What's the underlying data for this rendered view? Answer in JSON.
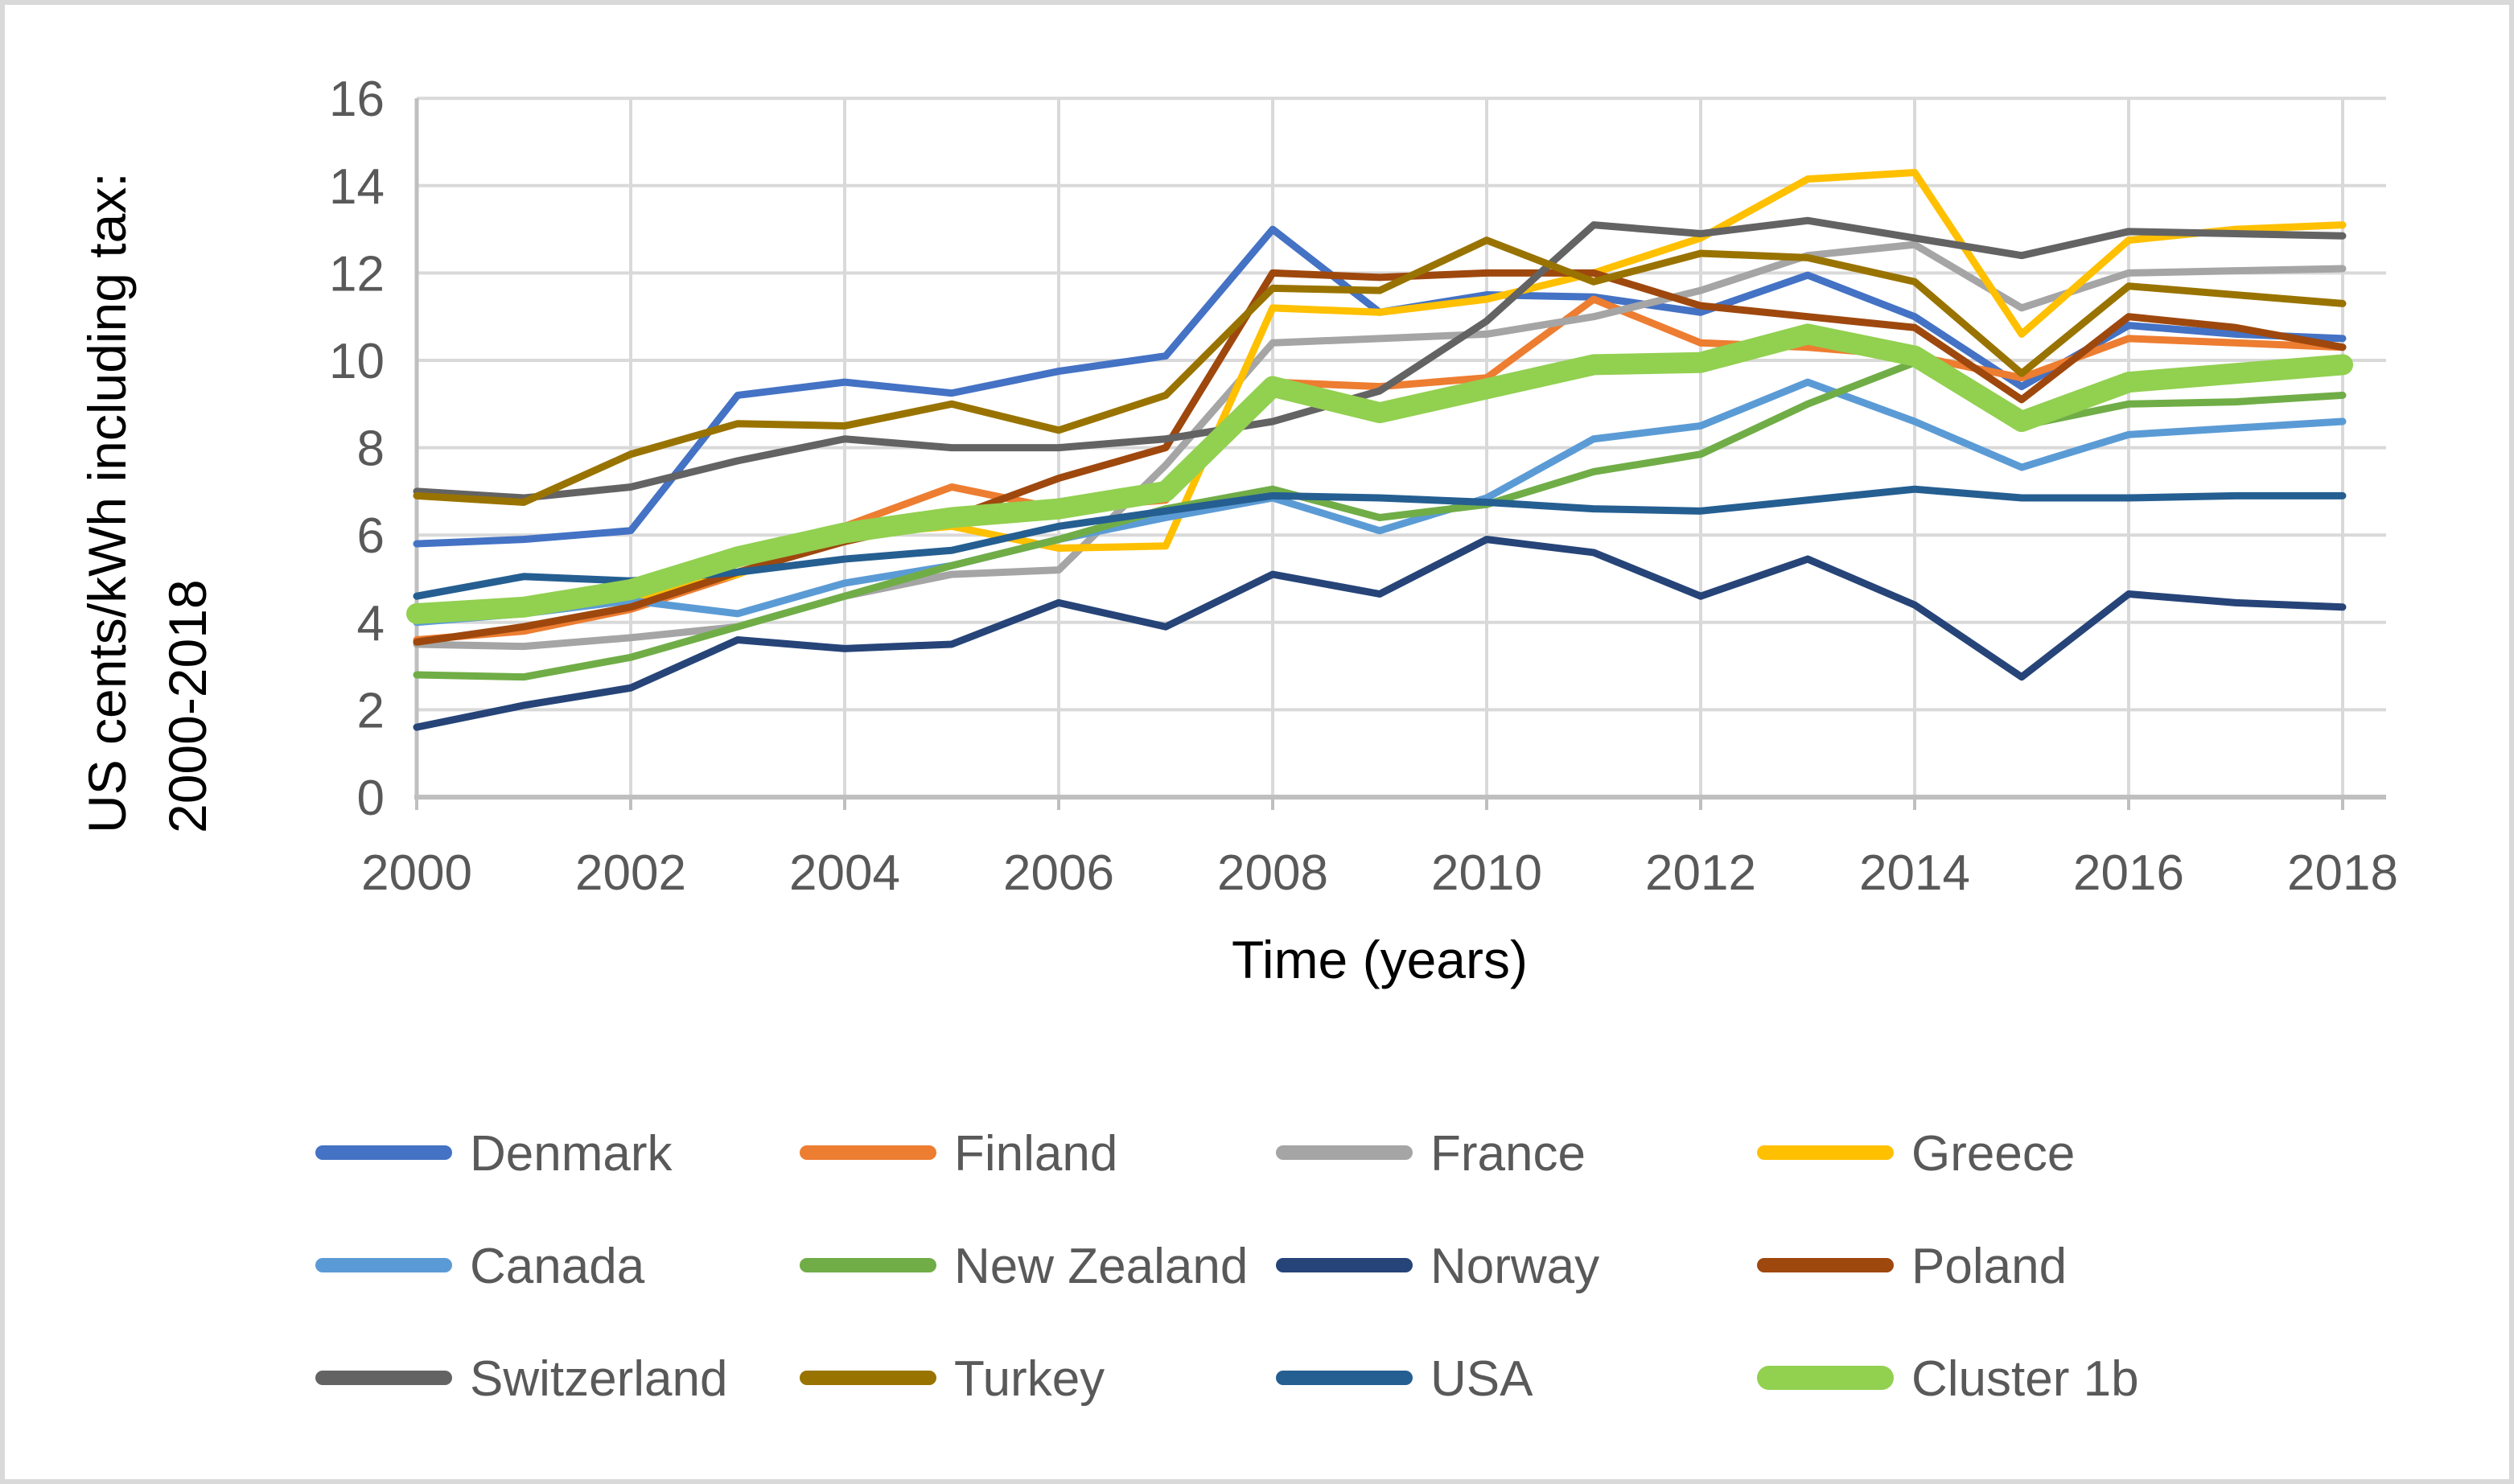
{
  "y_axis": {
    "title_line1": "US cents/kWh  including tax:",
    "title_line2": "2000-2018",
    "ticks": [
      0,
      2,
      4,
      6,
      8,
      10,
      12,
      14,
      16
    ]
  },
  "x_axis": {
    "title": "Time (years)",
    "ticks": [
      2000,
      2002,
      2004,
      2006,
      2008,
      2010,
      2012,
      2014,
      2016,
      2018
    ]
  },
  "colors": {
    "gridline": "#d9d9d9",
    "axis_line": "#bfbfbf",
    "tick_text": "#595959",
    "title_text": "#000000",
    "frame_border": "#d9d9d9"
  },
  "chart_data": {
    "type": "line",
    "title": "",
    "xlabel": "Time (years)",
    "ylabel": "US cents/kWh including tax: 2000-2018",
    "x": [
      2000,
      2001,
      2002,
      2003,
      2004,
      2005,
      2006,
      2007,
      2008,
      2009,
      2010,
      2011,
      2012,
      2013,
      2014,
      2015,
      2016,
      2017,
      2018
    ],
    "xticks": [
      2000,
      2002,
      2004,
      2006,
      2008,
      2010,
      2012,
      2014,
      2016,
      2018
    ],
    "yticks": [
      0,
      2,
      4,
      6,
      8,
      10,
      12,
      14,
      16
    ],
    "ylim": [
      0,
      16
    ],
    "grid": true,
    "legend_position": "bottom",
    "series": [
      {
        "name": "Denmark",
        "color": "#4472C4",
        "width": 9,
        "values": [
          5.8,
          5.9,
          6.1,
          9.2,
          9.5,
          9.25,
          9.75,
          10.1,
          13.0,
          11.1,
          11.5,
          11.45,
          11.1,
          11.95,
          11.0,
          9.4,
          10.8,
          10.6,
          10.5
        ]
      },
      {
        "name": "Finland",
        "color": "#ED7D31",
        "width": 9,
        "values": [
          3.6,
          3.8,
          4.3,
          5.1,
          6.2,
          7.1,
          6.6,
          6.8,
          9.5,
          9.4,
          9.6,
          11.4,
          10.4,
          10.3,
          10.1,
          9.6,
          10.5,
          10.4,
          10.3
        ]
      },
      {
        "name": "France",
        "color": "#A5A5A5",
        "width": 9,
        "values": [
          3.5,
          3.45,
          3.65,
          3.9,
          4.6,
          5.1,
          5.2,
          7.6,
          10.4,
          10.5,
          10.6,
          11.0,
          11.6,
          12.4,
          12.65,
          11.2,
          12.0,
          12.05,
          12.1
        ]
      },
      {
        "name": "Greece",
        "color": "#FFC000",
        "width": 9,
        "values": [
          4.2,
          4.3,
          4.55,
          5.1,
          6.0,
          6.2,
          5.7,
          5.75,
          11.2,
          11.1,
          11.4,
          12.0,
          12.8,
          14.15,
          14.3,
          10.6,
          12.75,
          13.0,
          13.1
        ]
      },
      {
        "name": "Canada",
        "color": "#5B9BD5",
        "width": 9,
        "values": [
          4.0,
          4.2,
          4.5,
          4.2,
          4.9,
          5.3,
          5.9,
          6.4,
          6.85,
          6.1,
          6.85,
          8.2,
          8.5,
          9.5,
          8.6,
          7.55,
          8.3,
          8.45,
          8.6
        ]
      },
      {
        "name": "New Zealand",
        "color": "#70AD47",
        "width": 9,
        "values": [
          2.8,
          2.75,
          3.2,
          3.9,
          4.6,
          5.3,
          5.9,
          6.6,
          7.05,
          6.4,
          6.7,
          7.45,
          7.85,
          9.0,
          9.95,
          8.5,
          9.0,
          9.05,
          9.2
        ]
      },
      {
        "name": "Norway",
        "color": "#264478",
        "width": 9,
        "values": [
          1.6,
          2.1,
          2.5,
          3.6,
          3.4,
          3.5,
          4.45,
          3.9,
          5.1,
          4.65,
          5.9,
          5.6,
          4.6,
          5.45,
          4.4,
          2.75,
          4.65,
          4.45,
          4.35
        ]
      },
      {
        "name": "Poland",
        "color": "#9E480E",
        "width": 9,
        "values": [
          3.55,
          3.9,
          4.35,
          5.15,
          5.85,
          6.4,
          7.3,
          8.0,
          12.0,
          11.9,
          12.0,
          12.0,
          11.25,
          11.0,
          10.75,
          9.1,
          11.0,
          10.75,
          10.3
        ]
      },
      {
        "name": "Switzerland",
        "color": "#636363",
        "width": 9,
        "values": [
          7.0,
          6.85,
          7.1,
          7.7,
          8.2,
          8.0,
          8.0,
          8.2,
          8.6,
          9.3,
          10.9,
          13.1,
          12.9,
          13.2,
          12.8,
          12.4,
          12.95,
          12.9,
          12.85
        ]
      },
      {
        "name": "Turkey",
        "color": "#997300",
        "width": 9,
        "values": [
          6.9,
          6.75,
          7.85,
          8.55,
          8.5,
          9.0,
          8.4,
          9.2,
          11.65,
          11.6,
          12.75,
          11.8,
          12.45,
          12.35,
          11.8,
          9.7,
          11.7,
          11.5,
          11.3
        ]
      },
      {
        "name": "USA",
        "color": "#255E91",
        "width": 9,
        "values": [
          4.6,
          5.05,
          4.95,
          5.15,
          5.45,
          5.65,
          6.2,
          6.55,
          6.9,
          6.85,
          6.75,
          6.6,
          6.55,
          6.8,
          7.05,
          6.85,
          6.85,
          6.9,
          6.9
        ]
      },
      {
        "name": "Cluster 1b",
        "color": "#92D050",
        "width": 26,
        "values": [
          4.2,
          4.35,
          4.75,
          5.5,
          6.05,
          6.4,
          6.6,
          7.0,
          9.4,
          8.8,
          9.35,
          9.9,
          9.95,
          10.6,
          10.1,
          8.6,
          9.5,
          9.7,
          9.9
        ]
      }
    ]
  }
}
